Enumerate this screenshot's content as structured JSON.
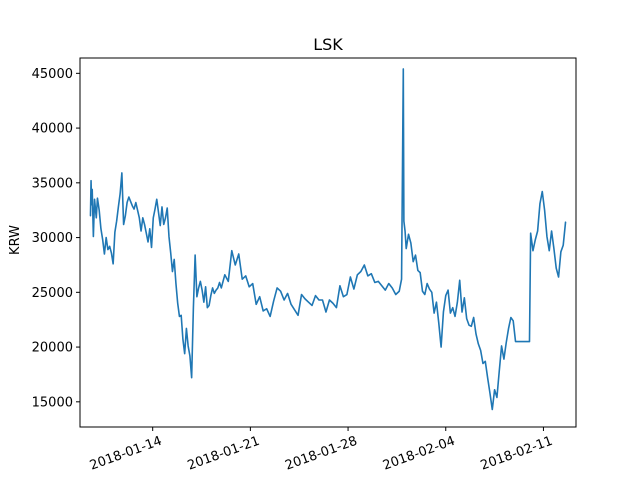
{
  "chart_data": {
    "type": "line",
    "title": "LSK",
    "xlabel": "",
    "ylabel": "KRW",
    "x_axis_type": "date",
    "xlim": [
      "2018-01-08T19:00",
      "2018-02-13T08:00"
    ],
    "ylim": [
      12700,
      46400
    ],
    "x_ticks": [
      "2018-01-14",
      "2018-01-21",
      "2018-01-28",
      "2018-02-04",
      "2018-02-11"
    ],
    "y_ticks": [
      15000,
      20000,
      25000,
      30000,
      35000,
      40000,
      45000
    ],
    "y_tick_labels": [
      "15000",
      "20000",
      "25000",
      "30000",
      "35000",
      "40000",
      "45000"
    ],
    "x_tick_rotation_deg": 20,
    "grid": false,
    "legend": "none",
    "series": [
      {
        "color": "#1f77b4",
        "x": [
          "2018-01-09T13:00",
          "2018-01-09T14:00",
          "2018-01-09T15:00",
          "2018-01-09T16:00",
          "2018-01-09T18:00",
          "2018-01-09T20:00",
          "2018-01-09T23:00",
          "2018-01-10T01:00",
          "2018-01-10T04:00",
          "2018-01-10T07:00",
          "2018-01-10T10:00",
          "2018-01-10T13:00",
          "2018-01-10T16:00",
          "2018-01-10T19:00",
          "2018-01-10T22:00",
          "2018-01-11T01:00",
          "2018-01-11T04:00",
          "2018-01-11T07:00",
          "2018-01-11T10:00",
          "2018-01-11T13:00",
          "2018-01-11T16:00",
          "2018-01-11T19:00",
          "2018-01-11T22:00",
          "2018-01-12T01:00",
          "2018-01-12T04:00",
          "2018-01-12T07:00",
          "2018-01-12T10:00",
          "2018-01-12T13:00",
          "2018-01-12T16:00",
          "2018-01-12T19:00",
          "2018-01-12T22:00",
          "2018-01-13T01:00",
          "2018-01-13T04:00",
          "2018-01-13T07:00",
          "2018-01-13T10:00",
          "2018-01-13T13:00",
          "2018-01-13T16:00",
          "2018-01-13T19:00",
          "2018-01-13T22:00",
          "2018-01-14T01:00",
          "2018-01-14T04:00",
          "2018-01-14T07:00",
          "2018-01-14T10:00",
          "2018-01-14T13:00",
          "2018-01-14T16:00",
          "2018-01-14T19:00",
          "2018-01-14T22:00",
          "2018-01-15T01:00",
          "2018-01-15T04:00",
          "2018-01-15T07:00",
          "2018-01-15T10:00",
          "2018-01-15T13:00",
          "2018-01-15T16:00",
          "2018-01-15T19:00",
          "2018-01-15T22:00",
          "2018-01-16T01:00",
          "2018-01-16T04:00",
          "2018-01-16T07:00",
          "2018-01-16T10:00",
          "2018-01-16T13:00",
          "2018-01-16T16:00",
          "2018-01-16T19:00",
          "2018-01-16T22:00",
          "2018-01-17T01:00",
          "2018-01-17T04:00",
          "2018-01-17T07:00",
          "2018-01-17T10:00",
          "2018-01-17T13:00",
          "2018-01-17T16:00",
          "2018-01-17T19:00",
          "2018-01-17T22:00",
          "2018-01-18T01:00",
          "2018-01-18T04:00",
          "2018-01-18T07:00",
          "2018-01-18T10:00",
          "2018-01-18T13:00",
          "2018-01-18T16:00",
          "2018-01-18T19:00",
          "2018-01-18T22:00",
          "2018-01-19T04:00",
          "2018-01-19T10:00",
          "2018-01-19T16:00",
          "2018-01-19T22:00",
          "2018-01-20T04:00",
          "2018-01-20T10:00",
          "2018-01-20T16:00",
          "2018-01-20T22:00",
          "2018-01-21T04:00",
          "2018-01-21T10:00",
          "2018-01-21T16:00",
          "2018-01-21T22:00",
          "2018-01-22T04:00",
          "2018-01-22T10:00",
          "2018-01-22T16:00",
          "2018-01-22T22:00",
          "2018-01-23T04:00",
          "2018-01-23T10:00",
          "2018-01-23T16:00",
          "2018-01-23T22:00",
          "2018-01-24T04:00",
          "2018-01-24T10:00",
          "2018-01-24T16:00",
          "2018-01-24T22:00",
          "2018-01-25T04:00",
          "2018-01-25T10:00",
          "2018-01-25T16:00",
          "2018-01-25T22:00",
          "2018-01-26T04:00",
          "2018-01-26T10:00",
          "2018-01-26T16:00",
          "2018-01-26T22:00",
          "2018-01-27T04:00",
          "2018-01-27T10:00",
          "2018-01-27T16:00",
          "2018-01-27T22:00",
          "2018-01-28T04:00",
          "2018-01-28T10:00",
          "2018-01-28T16:00",
          "2018-01-28T22:00",
          "2018-01-29T04:00",
          "2018-01-29T10:00",
          "2018-01-29T16:00",
          "2018-01-29T22:00",
          "2018-01-30T04:00",
          "2018-01-30T10:00",
          "2018-01-30T16:00",
          "2018-01-30T22:00",
          "2018-01-31T04:00",
          "2018-01-31T10:00",
          "2018-01-31T16:00",
          "2018-01-31T20:00",
          "2018-01-31T23:00",
          "2018-02-01T00:00",
          "2018-02-01T02:00",
          "2018-02-01T04:00",
          "2018-02-01T08:00",
          "2018-02-01T12:00",
          "2018-02-01T16:00",
          "2018-02-01T20:00",
          "2018-02-02T00:00",
          "2018-02-02T04:00",
          "2018-02-02T08:00",
          "2018-02-02T12:00",
          "2018-02-02T16:00",
          "2018-02-02T20:00",
          "2018-02-03T00:00",
          "2018-02-03T04:00",
          "2018-02-03T08:00",
          "2018-02-03T12:00",
          "2018-02-03T16:00",
          "2018-02-03T20:00",
          "2018-02-04T00:00",
          "2018-02-04T04:00",
          "2018-02-04T08:00",
          "2018-02-04T12:00",
          "2018-02-04T16:00",
          "2018-02-04T20:00",
          "2018-02-05T00:00",
          "2018-02-05T04:00",
          "2018-02-05T08:00",
          "2018-02-05T12:00",
          "2018-02-05T16:00",
          "2018-02-05T20:00",
          "2018-02-06T00:00",
          "2018-02-06T04:00",
          "2018-02-06T08:00",
          "2018-02-06T12:00",
          "2018-02-06T16:00",
          "2018-02-06T20:00",
          "2018-02-07T00:00",
          "2018-02-07T04:00",
          "2018-02-07T08:00",
          "2018-02-07T12:00",
          "2018-02-07T16:00",
          "2018-02-07T20:00",
          "2018-02-08T00:00",
          "2018-02-08T04:00",
          "2018-02-08T08:00",
          "2018-02-08T12:00",
          "2018-02-08T16:00",
          "2018-02-08T20:00",
          "2018-02-09T00:00",
          "2018-02-09T12:00",
          "2018-02-10T00:00",
          "2018-02-10T02:00",
          "2018-02-10T06:00",
          "2018-02-10T10:00",
          "2018-02-10T14:00",
          "2018-02-10T18:00",
          "2018-02-10T22:00",
          "2018-02-11T02:00",
          "2018-02-11T06:00",
          "2018-02-11T10:00",
          "2018-02-11T14:00",
          "2018-02-11T18:00",
          "2018-02-11T22:00",
          "2018-02-12T02:00",
          "2018-02-12T06:00",
          "2018-02-12T10:00",
          "2018-02-12T14:00"
        ],
        "y": [
          32000,
          35200,
          33000,
          34400,
          30100,
          33500,
          31800,
          33600,
          32500,
          30800,
          29800,
          28500,
          30000,
          28900,
          29200,
          28600,
          27600,
          30500,
          31500,
          32800,
          34000,
          35900,
          31200,
          32000,
          33200,
          33700,
          33300,
          32900,
          32600,
          33200,
          32500,
          31800,
          30600,
          31800,
          31200,
          30400,
          29600,
          30800,
          29100,
          31800,
          32600,
          33500,
          32300,
          31100,
          32800,
          31200,
          31800,
          32700,
          30100,
          28600,
          26900,
          28000,
          25800,
          24000,
          22800,
          22900,
          20700,
          19400,
          21700,
          20100,
          19200,
          17200,
          23600,
          28400,
          24600,
          25400,
          26000,
          25200,
          24100,
          25500,
          23600,
          23800,
          24700,
          25400,
          24900,
          25200,
          25400,
          25900,
          25400,
          26600,
          26000,
          28800,
          27500,
          28500,
          26200,
          26500,
          25500,
          25800,
          23900,
          24600,
          23300,
          23500,
          22800,
          24200,
          25400,
          25100,
          24300,
          24900,
          23900,
          23400,
          22900,
          24800,
          24400,
          24100,
          23800,
          24700,
          24300,
          24300,
          23200,
          24300,
          24000,
          23600,
          25600,
          24600,
          24800,
          26400,
          25300,
          26600,
          26900,
          27500,
          26500,
          26700,
          25900,
          26000,
          25600,
          25200,
          25800,
          25400,
          24800,
          25100,
          26200,
          45400,
          31500,
          30600,
          29000,
          30300,
          29500,
          27800,
          28400,
          27000,
          26800,
          25100,
          24800,
          25800,
          25300,
          25000,
          23100,
          24100,
          22200,
          20000,
          23200,
          24700,
          25200,
          23100,
          23600,
          22800,
          24100,
          26100,
          23200,
          24500,
          22600,
          22000,
          21900,
          22700,
          21200,
          20300,
          19700,
          18500,
          18700,
          17200,
          15800,
          14300,
          16100,
          15400,
          17800,
          20100,
          18900,
          20400,
          21700,
          22700,
          22400,
          20500,
          20500,
          20500,
          30400,
          28800,
          29800,
          30600,
          33100,
          34200,
          32500,
          30100,
          28800,
          30600,
          29000,
          27200,
          26400,
          28700,
          29300,
          31400
        ]
      }
    ]
  }
}
